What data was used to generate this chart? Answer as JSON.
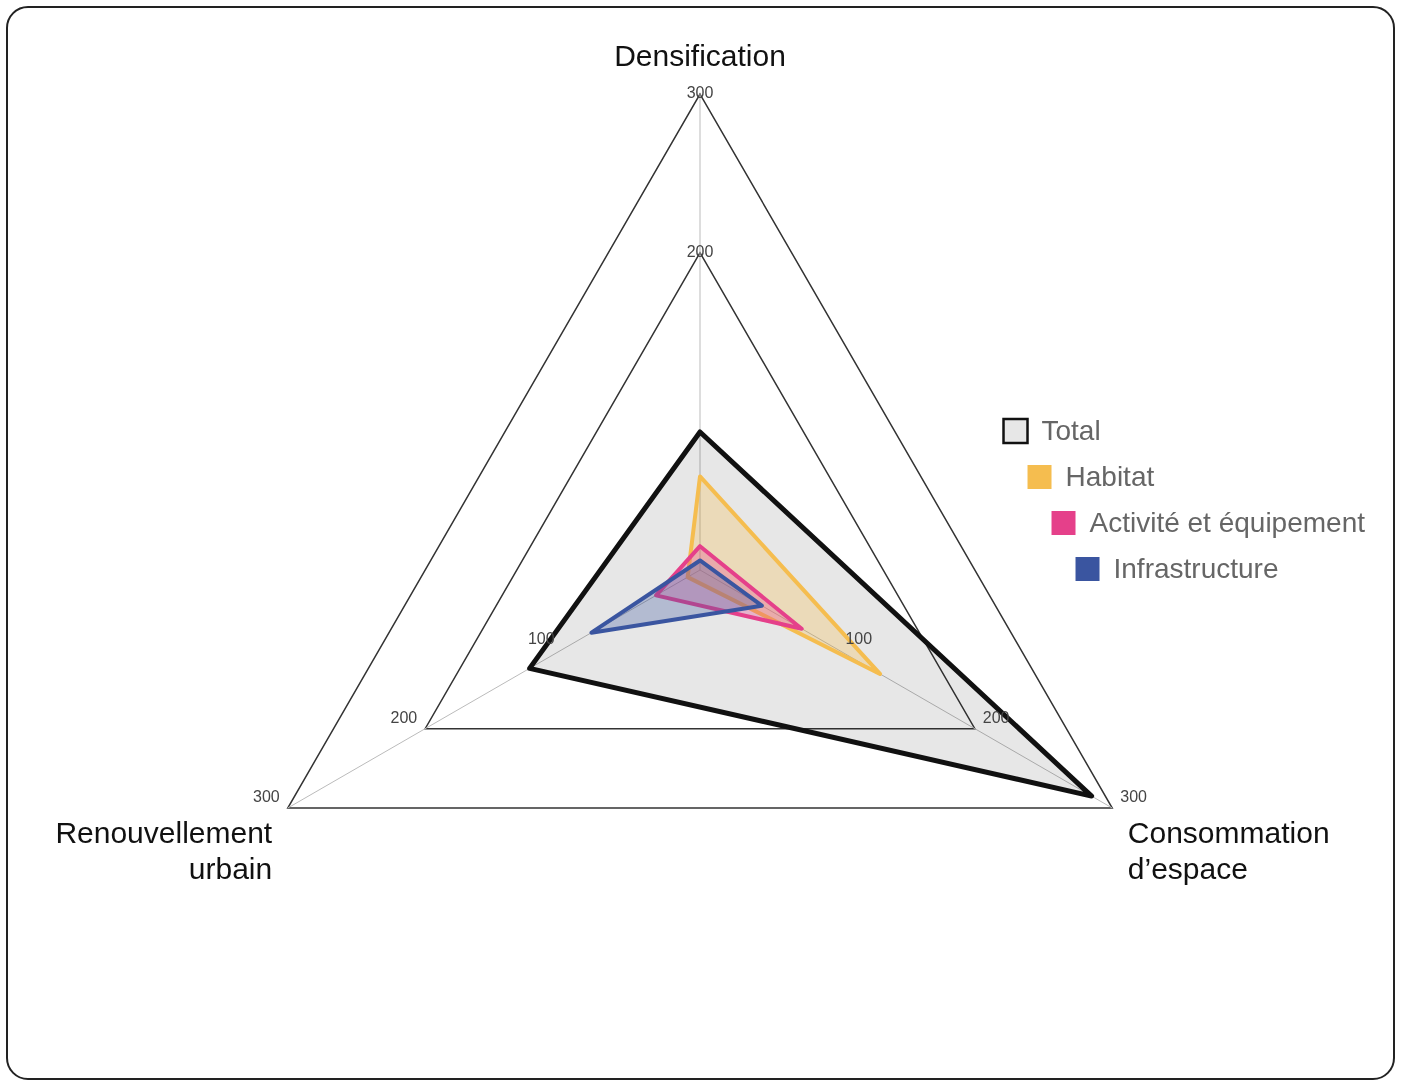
{
  "chart_data": {
    "type": "radar",
    "categories": [
      "Densification",
      "Consommation d’espace",
      "Renouvellement urbain"
    ],
    "series": [
      {
        "name": "Total",
        "color": "#111111",
        "values": [
          87,
          285,
          124
        ]
      },
      {
        "name": "Habitat",
        "color": "#f5bd4f",
        "values": [
          59,
          131,
          9
        ]
      },
      {
        "name": "Activité et équipement",
        "color": "#e5408a",
        "values": [
          15,
          74,
          32
        ]
      },
      {
        "name": "Infrastructure",
        "color": "#3a55a0",
        "values": [
          6,
          45,
          79
        ]
      }
    ],
    "ylim": [
      0,
      300
    ],
    "yticks": [
      100,
      200,
      300
    ],
    "annotations": [
      "100",
      "200",
      "300",
      "100",
      "200",
      "300"
    ],
    "grid": true,
    "legend": "right",
    "marker": "none",
    "line_style": "solid"
  }
}
